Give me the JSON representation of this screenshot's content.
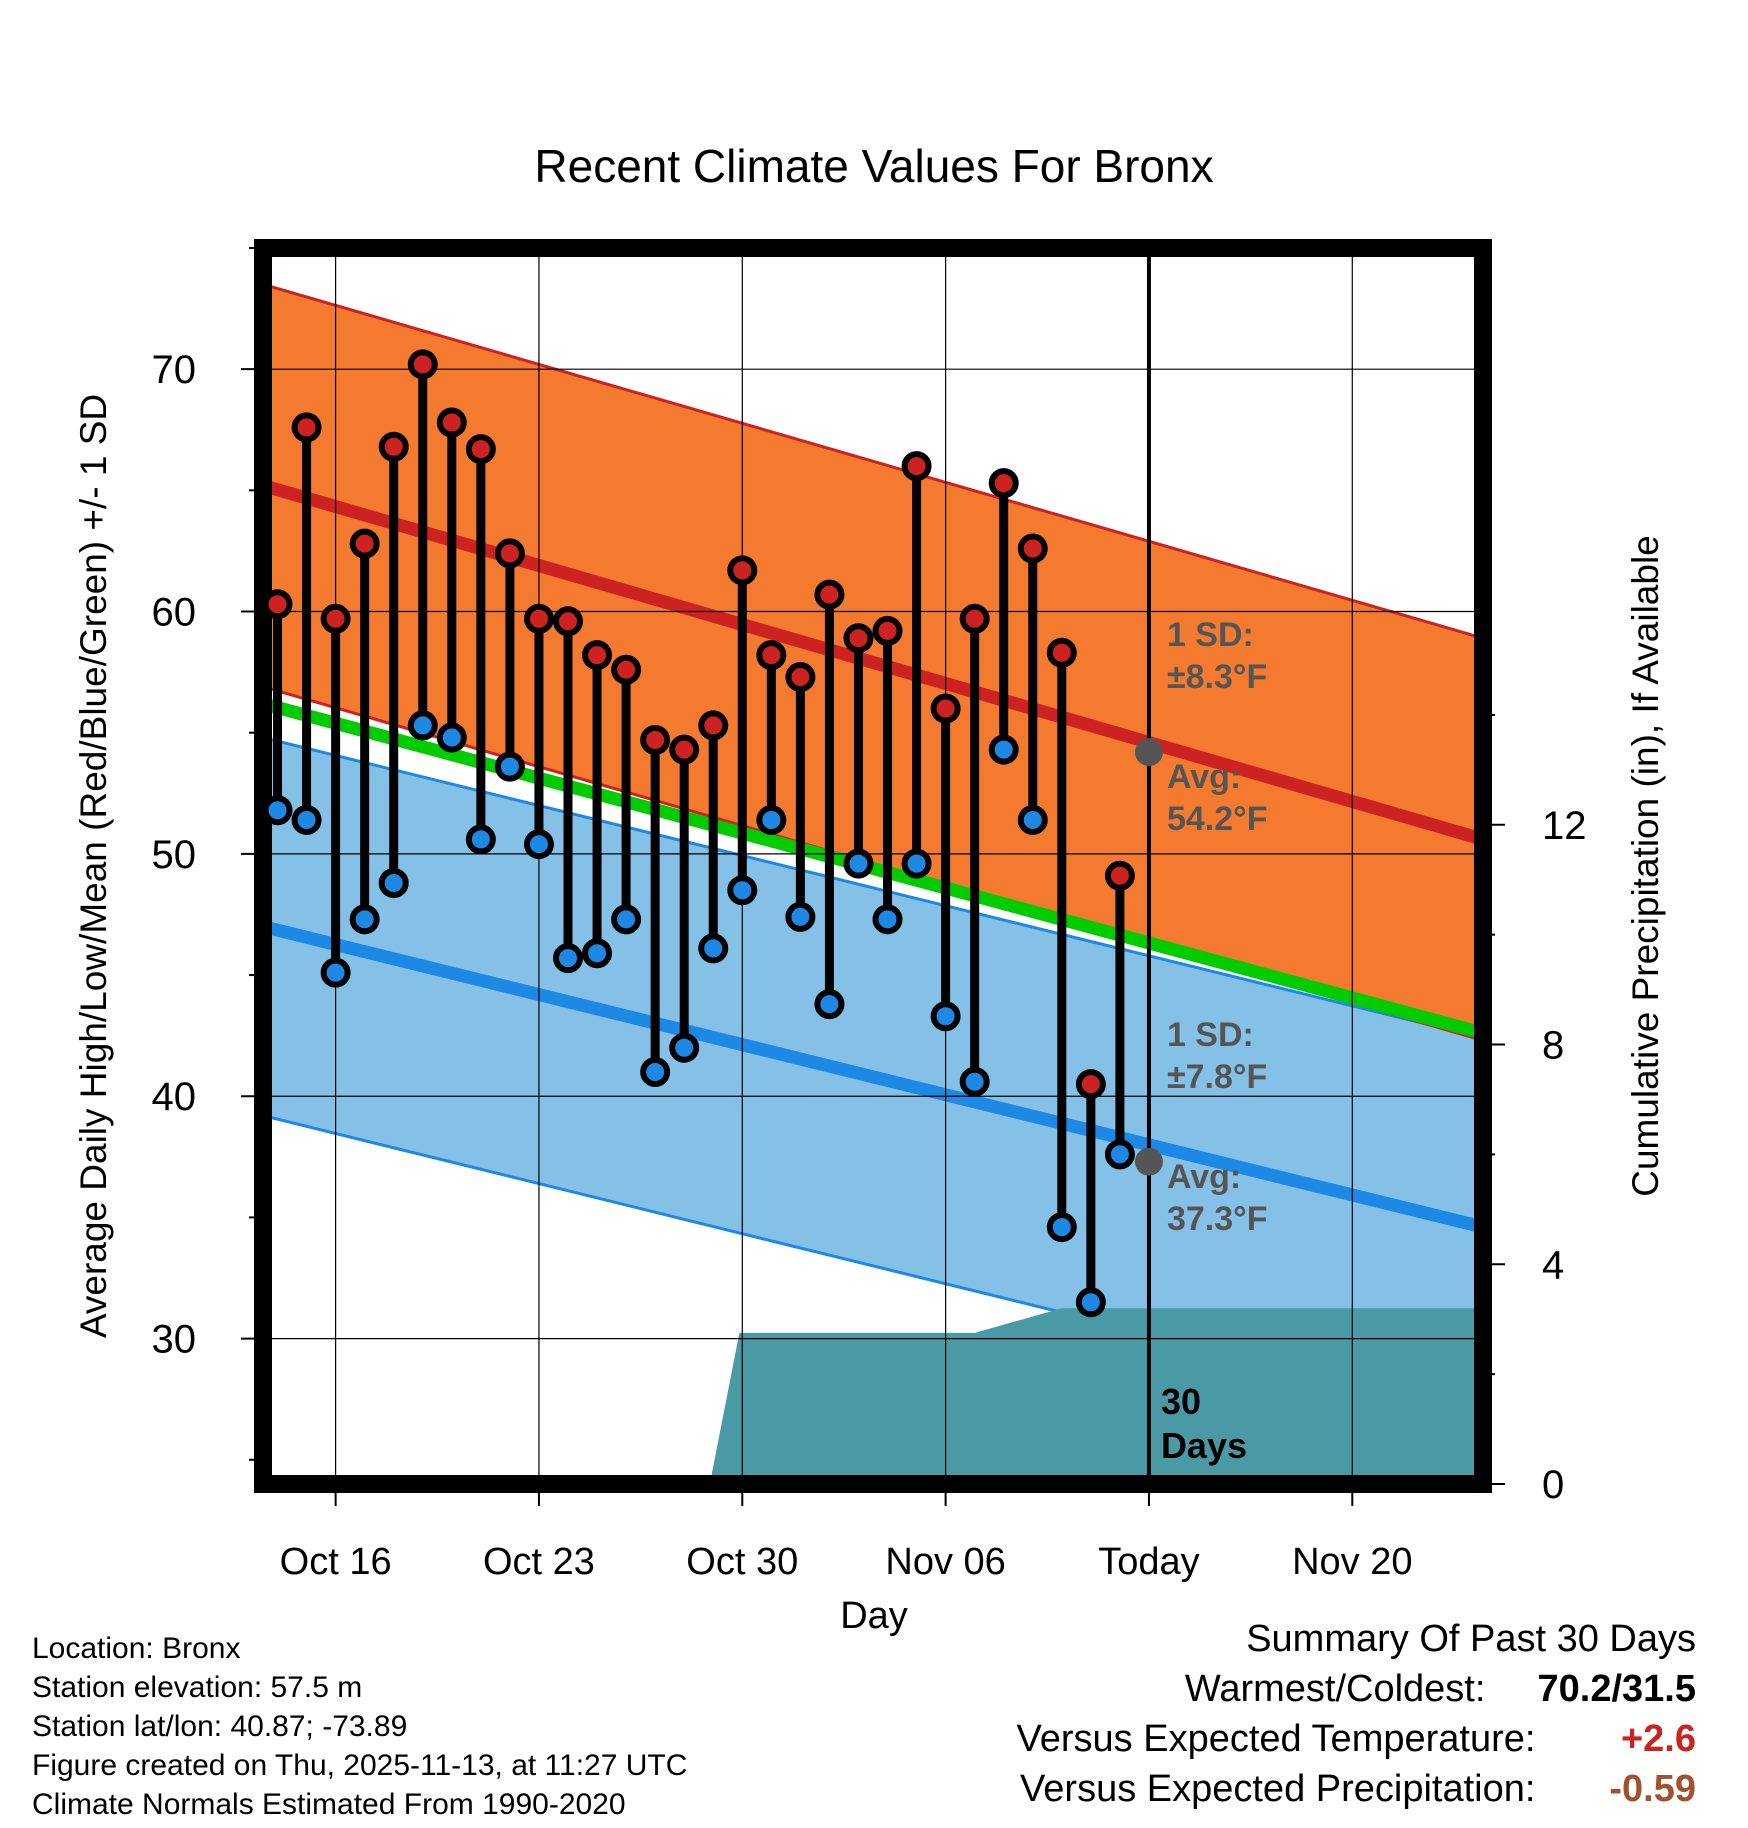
{
  "chart_data": {
    "type": "line",
    "title": "Recent Climate Values For Bronx",
    "xlabel": "Day",
    "ylabel": "Average Daily High/Low/Mean (Red/Blue/Green) +/- 1 SD",
    "y2label": "Cumulative Precipitation (in), If Available",
    "xlim": [
      -2.5,
      39.5
    ],
    "ylim": [
      24,
      75
    ],
    "y2lim": [
      0,
      22.5
    ],
    "x_tick_positions": [
      0,
      7,
      14,
      21,
      28,
      35
    ],
    "x_tick_labels": [
      "Oct 16",
      "Oct 23",
      "Oct 30",
      "Nov 06",
      "Today",
      "Nov 20"
    ],
    "y_ticks": [
      30,
      40,
      50,
      60,
      70
    ],
    "y2_ticks": [
      0,
      4,
      8,
      12
    ],
    "today_index": 28,
    "days_label": "30\nDays",
    "normals": {
      "high_mean": [
        65.2,
        50.6
      ],
      "high_sd": 8.3,
      "low_mean": [
        47.0,
        34.6
      ],
      "low_sd": 7.8,
      "mean": [
        56.2,
        42.6
      ],
      "high_today": 54.2,
      "low_today": 37.3,
      "high_sd_label": "1 SD:\n±8.3°F",
      "high_avg_label": "Avg:\n54.2°F",
      "low_sd_label": "1 SD:\n±7.8°F",
      "low_avg_label": "Avg:\n37.3°F"
    },
    "series": [
      {
        "name": "Daily High",
        "color": "#cc2222",
        "x": [
          -2,
          -1,
          0,
          1,
          2,
          3,
          4,
          5,
          6,
          7,
          8,
          9,
          10,
          11,
          12,
          13,
          14,
          15,
          16,
          17,
          18,
          19,
          20,
          21,
          22,
          23,
          24,
          25,
          26,
          27
        ],
        "values": [
          60.3,
          67.6,
          59.7,
          62.8,
          66.8,
          70.2,
          67.8,
          66.7,
          62.4,
          59.7,
          59.6,
          58.2,
          57.6,
          54.7,
          54.3,
          55.3,
          61.7,
          58.2,
          57.3,
          60.7,
          58.9,
          59.2,
          66.0,
          56.0,
          59.7,
          65.3,
          62.6,
          58.3,
          40.5,
          49.1
        ]
      },
      {
        "name": "Daily Low",
        "color": "#1e88e5",
        "x": [
          -2,
          -1,
          0,
          1,
          2,
          3,
          4,
          5,
          6,
          7,
          8,
          9,
          10,
          11,
          12,
          13,
          14,
          15,
          16,
          17,
          18,
          19,
          20,
          21,
          22,
          23,
          24,
          25,
          26,
          27
        ],
        "values": [
          51.8,
          51.4,
          45.1,
          47.3,
          48.8,
          55.3,
          54.8,
          50.6,
          53.6,
          50.4,
          45.7,
          45.9,
          47.3,
          41.0,
          42.0,
          46.1,
          48.5,
          51.4,
          47.4,
          43.8,
          49.6,
          47.3,
          49.6,
          43.3,
          40.6,
          54.3,
          51.4,
          34.6,
          31.5,
          37.6
        ]
      },
      {
        "name": "Cumulative Precipitation",
        "color": "#4a9aa5",
        "x": [
          -2,
          4,
          5,
          6,
          12,
          12.9,
          13.9,
          21,
          22,
          24,
          25,
          26,
          27,
          28,
          39.5
        ],
        "values": [
          0,
          0,
          0,
          0.05,
          0.05,
          0.05,
          2.75,
          2.75,
          2.75,
          3.05,
          3.2,
          3.2,
          3.2,
          3.2,
          3.2
        ]
      }
    ]
  },
  "footer": {
    "location": "Location: Bronx",
    "elevation": "Station elevation: 57.5 m",
    "latlon": "Station lat/lon: 40.87; -73.89",
    "created": "Figure created on Thu, 2025-11-13, at 11:27 UTC",
    "normals": "Climate Normals Estimated From 1990-2020"
  },
  "summary": {
    "title": "Summary Of Past 30 Days",
    "warmest_coldest_label": "Warmest/Coldest:",
    "warmest_coldest_value": "70.2/31.5",
    "temp_label": "Versus Expected Temperature:",
    "temp_value": "+2.6",
    "temp_color": "#cc2222",
    "precip_label": "Versus Expected Precipitation:",
    "precip_value": "-0.59",
    "precip_color": "#a0522d"
  },
  "colors": {
    "high_band": "#f47a30",
    "high_line": "#cc2222",
    "low_band": "#85c1e6",
    "low_line": "#1e88e5",
    "mean_line": "#00cc00",
    "precip_fill": "#4a9aa5",
    "annot_text": "#555555"
  }
}
